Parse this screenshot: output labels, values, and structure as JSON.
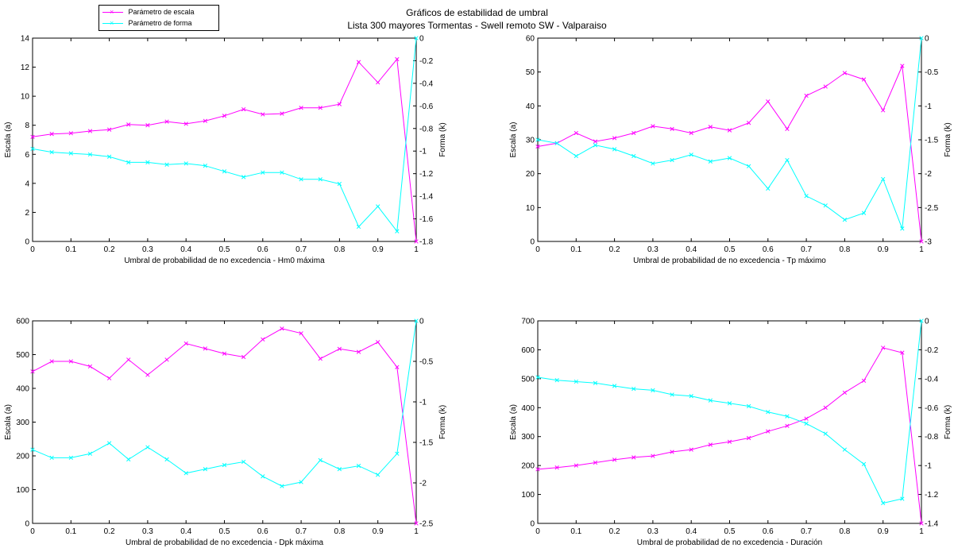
{
  "figure": {
    "title_line1": "Gráficos de estabilidad de umbral",
    "title_line2": "Lista 300 mayores Tormentas - Swell remoto SW - Valparaiso"
  },
  "legend": {
    "entries": [
      {
        "label": "Parámetro de escala",
        "color": "#ff00ff",
        "marker": "x"
      },
      {
        "label": "Parámetro de forma",
        "color": "#00ffff",
        "marker": "x"
      }
    ]
  },
  "colors": {
    "escala": "#ff00ff",
    "forma": "#00ffff",
    "axes": "#000000"
  },
  "chart_data": [
    {
      "type": "line",
      "xlabel": "Umbral de probabilidad de no excedencia - Hm0 máxima",
      "ylabel": "Escala (a)",
      "y2label": "Forma (k)",
      "xlim": [
        0,
        1
      ],
      "ylim": [
        0,
        14
      ],
      "y2lim": [
        -1.8,
        0
      ],
      "xticks": [
        0,
        0.1,
        0.2,
        0.3,
        0.4,
        0.5,
        0.6,
        0.7,
        0.8,
        0.9,
        1
      ],
      "yticks": [
        0,
        2,
        4,
        6,
        8,
        10,
        12,
        14
      ],
      "y2ticks": [
        -1.8,
        -1.6,
        -1.4,
        -1.2,
        -1,
        -0.8,
        -0.6,
        -0.4,
        -0.2,
        0
      ],
      "x": [
        0,
        0.05,
        0.1,
        0.15,
        0.2,
        0.25,
        0.3,
        0.35,
        0.4,
        0.45,
        0.5,
        0.55,
        0.6,
        0.65,
        0.7,
        0.75,
        0.8,
        0.85,
        0.9,
        0.95,
        1
      ],
      "series": [
        {
          "name": "Parámetro de escala",
          "axis": "left",
          "values": [
            7.2,
            7.4,
            7.45,
            7.6,
            7.7,
            8.05,
            8.0,
            8.25,
            8.1,
            8.3,
            8.65,
            9.1,
            8.75,
            8.8,
            9.2,
            9.2,
            9.45,
            12.35,
            10.95,
            12.55,
            0
          ]
        },
        {
          "name": "Parámetro de forma",
          "axis": "right",
          "values": [
            -0.98,
            -1.01,
            -1.02,
            -1.03,
            -1.05,
            -1.1,
            -1.1,
            -1.12,
            -1.11,
            -1.13,
            -1.18,
            -1.23,
            -1.19,
            -1.19,
            -1.25,
            -1.25,
            -1.29,
            -1.67,
            -1.49,
            -1.71,
            0
          ]
        }
      ]
    },
    {
      "type": "line",
      "xlabel": "Umbral de probabilidad de no excedencia - Tp máximo",
      "ylabel": "Escala (a)",
      "y2label": "Forma (k)",
      "xlim": [
        0,
        1
      ],
      "ylim": [
        0,
        60
      ],
      "y2lim": [
        -3,
        0
      ],
      "xticks": [
        0,
        0.1,
        0.2,
        0.3,
        0.4,
        0.5,
        0.6,
        0.7,
        0.8,
        0.9,
        1
      ],
      "yticks": [
        0,
        10,
        20,
        30,
        40,
        50,
        60
      ],
      "y2ticks": [
        -3,
        -2.5,
        -2,
        -1.5,
        -1,
        -0.5,
        0
      ],
      "x": [
        0,
        0.05,
        0.1,
        0.15,
        0.2,
        0.25,
        0.3,
        0.35,
        0.4,
        0.45,
        0.5,
        0.55,
        0.6,
        0.65,
        0.7,
        0.75,
        0.8,
        0.85,
        0.9,
        0.95,
        1
      ],
      "series": [
        {
          "name": "Parámetro de escala",
          "axis": "left",
          "values": [
            28,
            29,
            32,
            29.5,
            30.5,
            32,
            34,
            33.2,
            32,
            33.8,
            32.8,
            35,
            41.3,
            33.2,
            43,
            45.7,
            49.7,
            47.8,
            38.7,
            51.8,
            0
          ]
        },
        {
          "name": "Parámetro de forma",
          "axis": "right",
          "values": [
            -1.5,
            -1.55,
            -1.74,
            -1.58,
            -1.64,
            -1.74,
            -1.85,
            -1.8,
            -1.72,
            -1.82,
            -1.77,
            -1.89,
            -2.22,
            -1.8,
            -2.33,
            -2.47,
            -2.68,
            -2.58,
            -2.08,
            -2.81,
            0
          ]
        }
      ]
    },
    {
      "type": "line",
      "xlabel": "Umbral de probabilidad de no excedencia - Dpk máxima",
      "ylabel": "Escala (a)",
      "y2label": "Forma (k)",
      "xlim": [
        0,
        1
      ],
      "ylim": [
        0,
        600
      ],
      "y2lim": [
        -2.5,
        0
      ],
      "xticks": [
        0,
        0.1,
        0.2,
        0.3,
        0.4,
        0.5,
        0.6,
        0.7,
        0.8,
        0.9,
        1
      ],
      "yticks": [
        0,
        100,
        200,
        300,
        400,
        500,
        600
      ],
      "y2ticks": [
        -2.5,
        -2,
        -1.5,
        -1,
        -0.5,
        0
      ],
      "x": [
        0,
        0.05,
        0.1,
        0.15,
        0.2,
        0.25,
        0.3,
        0.35,
        0.4,
        0.45,
        0.5,
        0.55,
        0.6,
        0.65,
        0.7,
        0.75,
        0.8,
        0.85,
        0.9,
        0.95,
        1
      ],
      "series": [
        {
          "name": "Parámetro de escala",
          "axis": "left",
          "values": [
            450,
            480,
            480,
            465,
            430,
            485,
            440,
            485,
            533,
            518,
            503,
            493,
            545,
            577,
            563,
            488,
            517,
            508,
            537,
            463,
            0
          ]
        },
        {
          "name": "Parámetro de forma",
          "axis": "right",
          "values": [
            -1.59,
            -1.69,
            -1.69,
            -1.64,
            -1.51,
            -1.71,
            -1.56,
            -1.71,
            -1.88,
            -1.83,
            -1.78,
            -1.74,
            -1.92,
            -2.04,
            -1.99,
            -1.72,
            -1.83,
            -1.79,
            -1.9,
            -1.64,
            0
          ]
        }
      ]
    },
    {
      "type": "line",
      "xlabel": "Umbral de probabilidad de no excedencia - Duración",
      "ylabel": "Escala (a)",
      "y2label": "Forma (k)",
      "xlim": [
        0,
        1
      ],
      "ylim": [
        0,
        700
      ],
      "y2lim": [
        -1.4,
        0
      ],
      "xticks": [
        0,
        0.1,
        0.2,
        0.3,
        0.4,
        0.5,
        0.6,
        0.7,
        0.8,
        0.9,
        1
      ],
      "yticks": [
        0,
        100,
        200,
        300,
        400,
        500,
        600,
        700
      ],
      "y2ticks": [
        -1.4,
        -1.2,
        -1,
        -0.8,
        -0.6,
        -0.4,
        -0.2,
        0
      ],
      "x": [
        0,
        0.05,
        0.1,
        0.15,
        0.2,
        0.25,
        0.3,
        0.35,
        0.4,
        0.45,
        0.5,
        0.55,
        0.6,
        0.65,
        0.7,
        0.75,
        0.8,
        0.85,
        0.9,
        0.95,
        1
      ],
      "series": [
        {
          "name": "Parámetro de escala",
          "axis": "left",
          "values": [
            187,
            193,
            200,
            210,
            220,
            228,
            233,
            247,
            255,
            272,
            282,
            295,
            318,
            337,
            362,
            400,
            452,
            493,
            607,
            590,
            0
          ]
        },
        {
          "name": "Parámetro de forma",
          "axis": "right",
          "values": [
            -0.39,
            -0.41,
            -0.42,
            -0.43,
            -0.45,
            -0.47,
            -0.48,
            -0.51,
            -0.52,
            -0.55,
            -0.57,
            -0.59,
            -0.63,
            -0.66,
            -0.71,
            -0.78,
            -0.89,
            -0.99,
            -1.26,
            -1.23,
            0
          ]
        }
      ]
    }
  ]
}
